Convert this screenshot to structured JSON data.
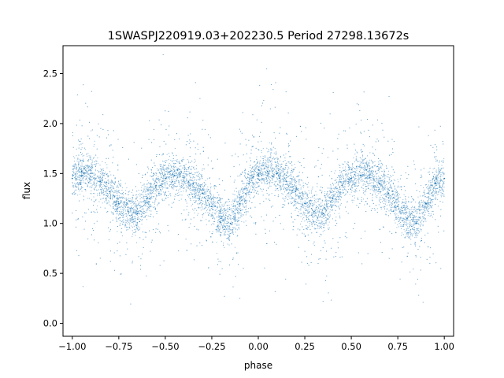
{
  "chart_data": {
    "type": "scatter",
    "title": "1SWASPJ220919.03+202230.5 Period 27298.13672s",
    "xlabel": "phase",
    "ylabel": "flux",
    "xlim": [
      -1.05,
      1.05
    ],
    "ylim": [
      -0.13,
      2.78
    ],
    "xticks": [
      -1.0,
      -0.75,
      -0.5,
      -0.25,
      0.0,
      0.25,
      0.5,
      0.75,
      1.0
    ],
    "xtick_labels": [
      "−1.00",
      "−0.75",
      "−0.50",
      "−0.25",
      "0.00",
      "0.25",
      "0.50",
      "0.75",
      "1.00"
    ],
    "yticks": [
      0.0,
      0.5,
      1.0,
      1.5,
      2.0,
      2.5
    ],
    "ytick_labels": [
      "0.0",
      "0.5",
      "1.0",
      "1.5",
      "2.0",
      "2.5"
    ],
    "grid": false,
    "marker_color": "#1f77b4",
    "series": [
      {
        "x": [
          -1.0,
          -0.95,
          -0.9,
          -0.85,
          -0.8,
          -0.75,
          -0.7,
          -0.65,
          -0.6,
          -0.55,
          -0.5,
          -0.45,
          -0.4,
          -0.35,
          -0.3,
          -0.25,
          -0.2,
          -0.15,
          -0.1,
          -0.05,
          0.0,
          0.05,
          0.1,
          0.15,
          0.2,
          0.25,
          0.3,
          0.35,
          0.4,
          0.45,
          0.5,
          0.55,
          0.6,
          0.65,
          0.7,
          0.75,
          0.8,
          0.85,
          0.9,
          0.95,
          1.0
        ],
        "y": [
          1.45,
          1.52,
          1.5,
          1.42,
          1.32,
          1.2,
          1.12,
          1.1,
          1.25,
          1.38,
          1.45,
          1.48,
          1.46,
          1.4,
          1.3,
          1.17,
          1.05,
          1.0,
          1.2,
          1.4,
          1.48,
          1.52,
          1.5,
          1.42,
          1.32,
          1.2,
          1.12,
          1.1,
          1.25,
          1.38,
          1.45,
          1.48,
          1.46,
          1.4,
          1.3,
          1.17,
          1.05,
          1.0,
          1.2,
          1.4,
          1.45
        ]
      }
    ]
  }
}
